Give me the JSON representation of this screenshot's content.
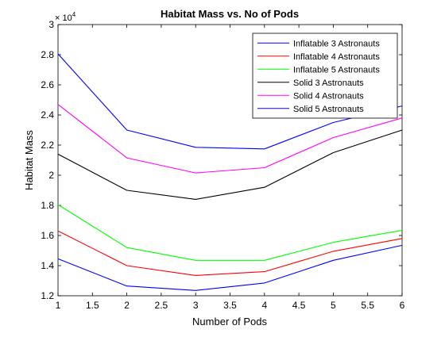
{
  "chart_data": {
    "type": "line",
    "title": "Habitat Mass vs. No of Pods",
    "xlabel": "Number of Pods",
    "ylabel": "Habitat Mass",
    "exponent_label": "× 10^4",
    "exponent_base": "× 10",
    "exponent_power": "4",
    "xlim": [
      1,
      6
    ],
    "ylim": [
      1.2,
      3.0
    ],
    "x_ticks": [
      1,
      1.5,
      2,
      2.5,
      3,
      3.5,
      4,
      4.5,
      5,
      5.5,
      6
    ],
    "x_tick_labels": [
      "1",
      "1.5",
      "2",
      "2.5",
      "3",
      "3.5",
      "4",
      "4.5",
      "5",
      "5.5",
      "6"
    ],
    "y_ticks": [
      1.2,
      1.4,
      1.6,
      1.8,
      2.0,
      2.2,
      2.4,
      2.6,
      2.8,
      3.0
    ],
    "y_tick_labels": [
      "1.2",
      "1.4",
      "1.6",
      "1.8",
      "2",
      "2.2",
      "2.4",
      "2.6",
      "2.8",
      "3"
    ],
    "grid": false,
    "legend_position": "top-right",
    "x": [
      1,
      2,
      3,
      4,
      5,
      6
    ],
    "series": [
      {
        "name": "Inflatable 3 Astronauts",
        "color": "#0000ff",
        "values": [
          1.445,
          1.265,
          1.235,
          1.285,
          1.435,
          1.535
        ]
      },
      {
        "name": "Inflatable 4 Astronauts",
        "color": "#ff0000",
        "values": [
          1.63,
          1.4,
          1.335,
          1.36,
          1.495,
          1.58
        ]
      },
      {
        "name": "Inflatable 5 Astronauts",
        "color": "#00ff00",
        "values": [
          1.805,
          1.52,
          1.435,
          1.435,
          1.555,
          1.635
        ]
      },
      {
        "name": "Solid 3 Astronauts",
        "color": "#000000",
        "values": [
          2.14,
          1.9,
          1.84,
          1.92,
          2.15,
          2.3
        ]
      },
      {
        "name": "Solid 4 Astronauts",
        "color": "#ff00ff",
        "values": [
          2.47,
          2.115,
          2.015,
          2.05,
          2.25,
          2.38
        ]
      },
      {
        "name": "Solid 5 Astronauts",
        "color": "#0000ff",
        "values": [
          2.805,
          2.3,
          2.185,
          2.175,
          2.35,
          2.46
        ]
      }
    ]
  }
}
